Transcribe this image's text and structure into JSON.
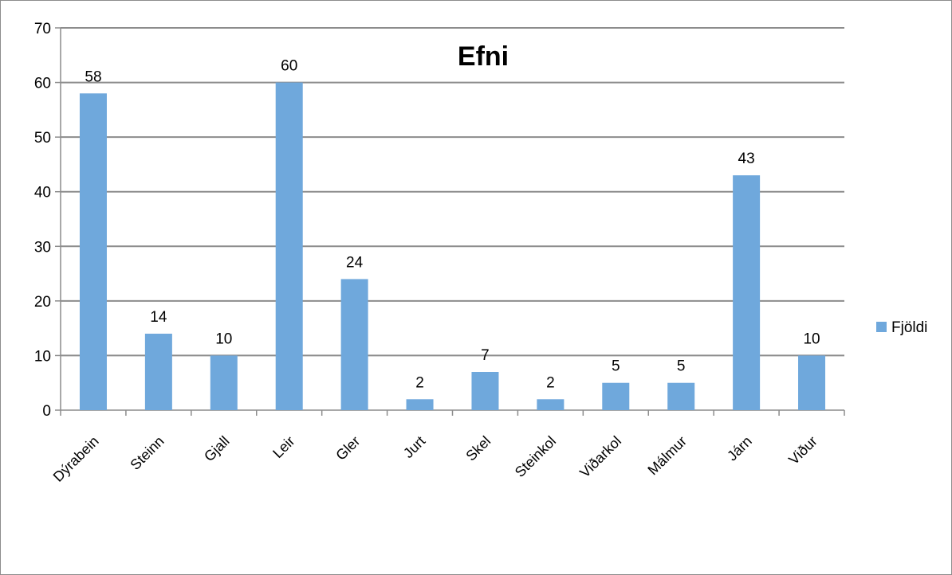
{
  "chart_data": {
    "type": "bar",
    "title": "Efni",
    "categories": [
      "Dýrabein",
      "Steinn",
      "Gjall",
      "Leir",
      "Gler",
      "Jurt",
      "Skel",
      "Steinkol",
      "Viðarkol",
      "Málmur",
      "Járn",
      "Viður"
    ],
    "series": [
      {
        "name": "Fjöldi",
        "values": [
          58,
          14,
          10,
          60,
          24,
          2,
          7,
          2,
          5,
          5,
          43,
          10
        ],
        "color": "#6fa8dc"
      }
    ],
    "ylim": [
      0,
      70
    ],
    "yticks": [
      0,
      10,
      20,
      30,
      40,
      50,
      60,
      70
    ],
    "grid": true,
    "legend": "right",
    "data_labels": true,
    "xlabel": "",
    "ylabel": ""
  }
}
